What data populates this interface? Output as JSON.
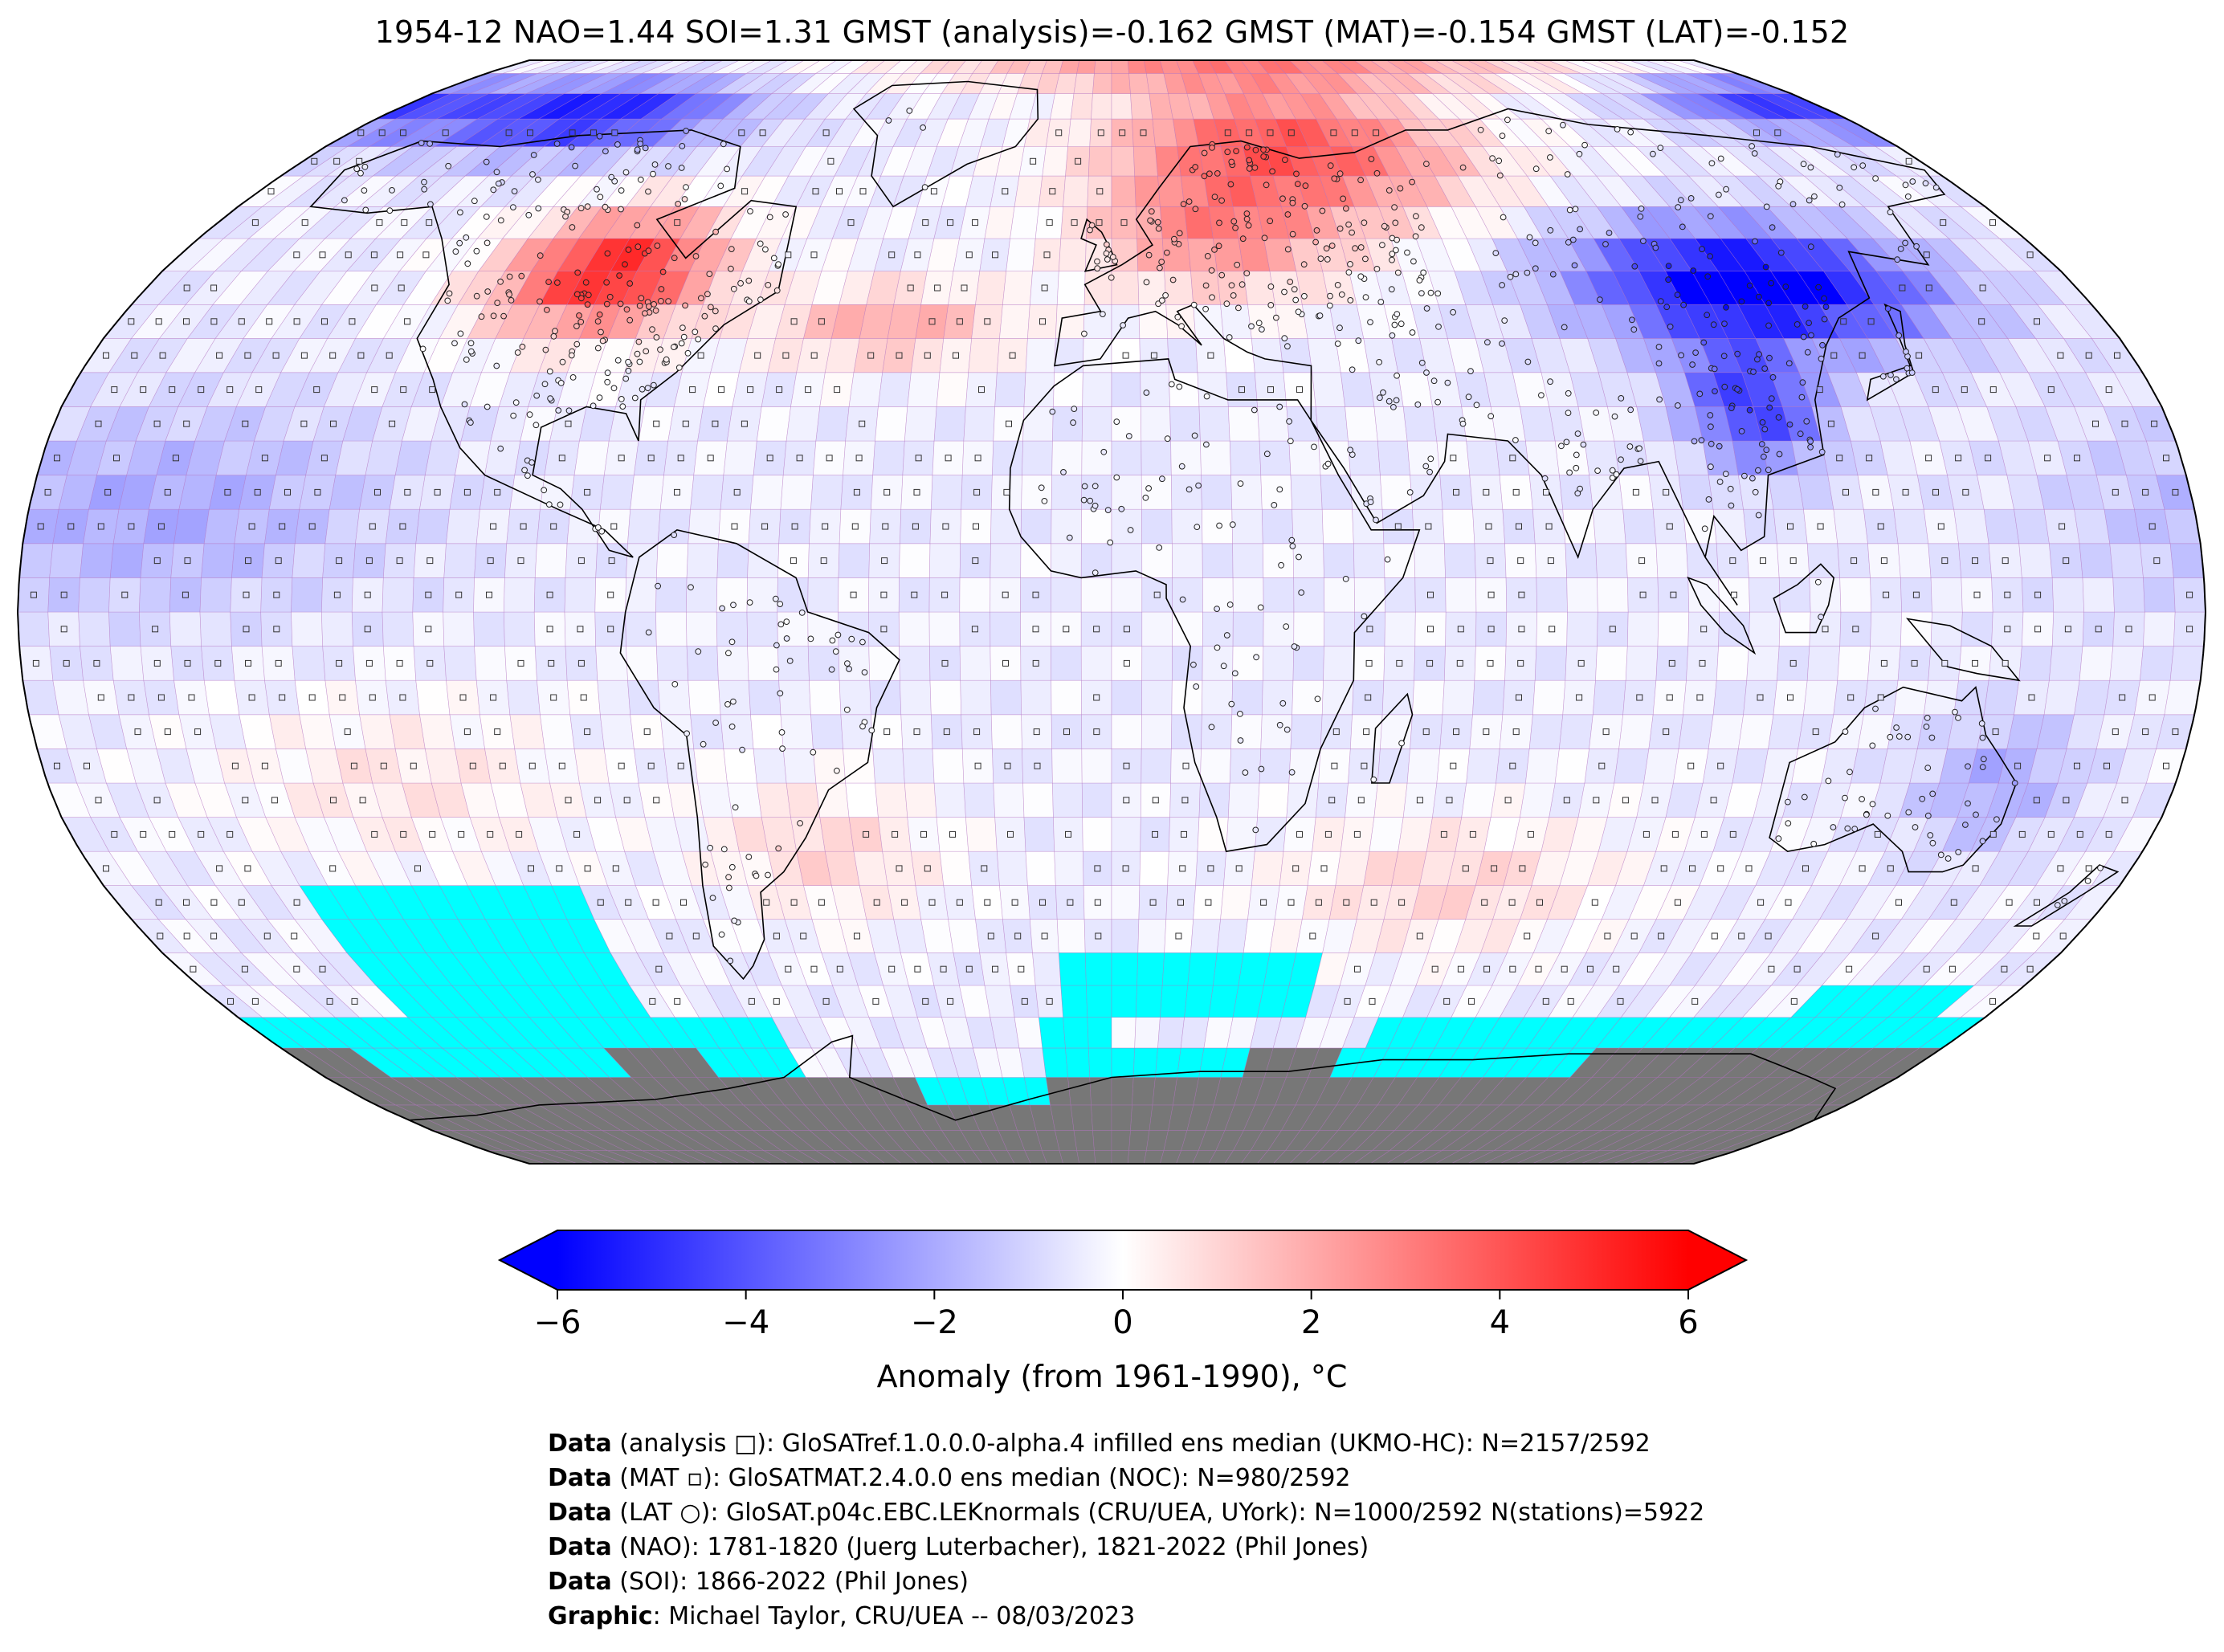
{
  "title": "1954-12 NAO=1.44 SOI=1.31 GMST (analysis)=-0.162 GMST (MAT)=-0.154 GMST (LAT)=-0.152",
  "colorbar": {
    "label": "Anomaly (from 1961-1990), °C",
    "min": -6,
    "max": 6,
    "ticks": [
      "−6",
      "−4",
      "−2",
      "0",
      "2",
      "4",
      "6"
    ],
    "colors": {
      "low": "#0000ff",
      "mid": "#ffffff",
      "high": "#ff0000"
    }
  },
  "map": {
    "projection": "Robinson",
    "missing_color": "#00ffff",
    "land_mask_color": "#777777",
    "grid_line_color": "#b070c0"
  },
  "credits": [
    {
      "bold": "Data",
      "text": " (analysis □): GloSATref.1.0.0.0-alpha.4 infilled ens median (UKMO-HC): N=2157/2592"
    },
    {
      "bold": "Data",
      "text": " (MAT ▫): GloSATMAT.2.4.0.0 ens median (NOC): N=980/2592"
    },
    {
      "bold": "Data",
      "text": " (LAT ○): GloSAT.p04c.EBC.LEKnormals (CRU/UEA, UYork): N=1000/2592 N(stations)=5922"
    },
    {
      "bold": "Data",
      "text": " (NAO): 1781-1820 (Juerg Luterbacher), 1821-2022 (Phil Jones)"
    },
    {
      "bold": "Data",
      "text": " (SOI): 1866-2022 (Phil Jones)"
    },
    {
      "bold": "Graphic",
      "text": ": Michael Taylor, CRU/UEA -- 08/03/2023"
    }
  ]
}
